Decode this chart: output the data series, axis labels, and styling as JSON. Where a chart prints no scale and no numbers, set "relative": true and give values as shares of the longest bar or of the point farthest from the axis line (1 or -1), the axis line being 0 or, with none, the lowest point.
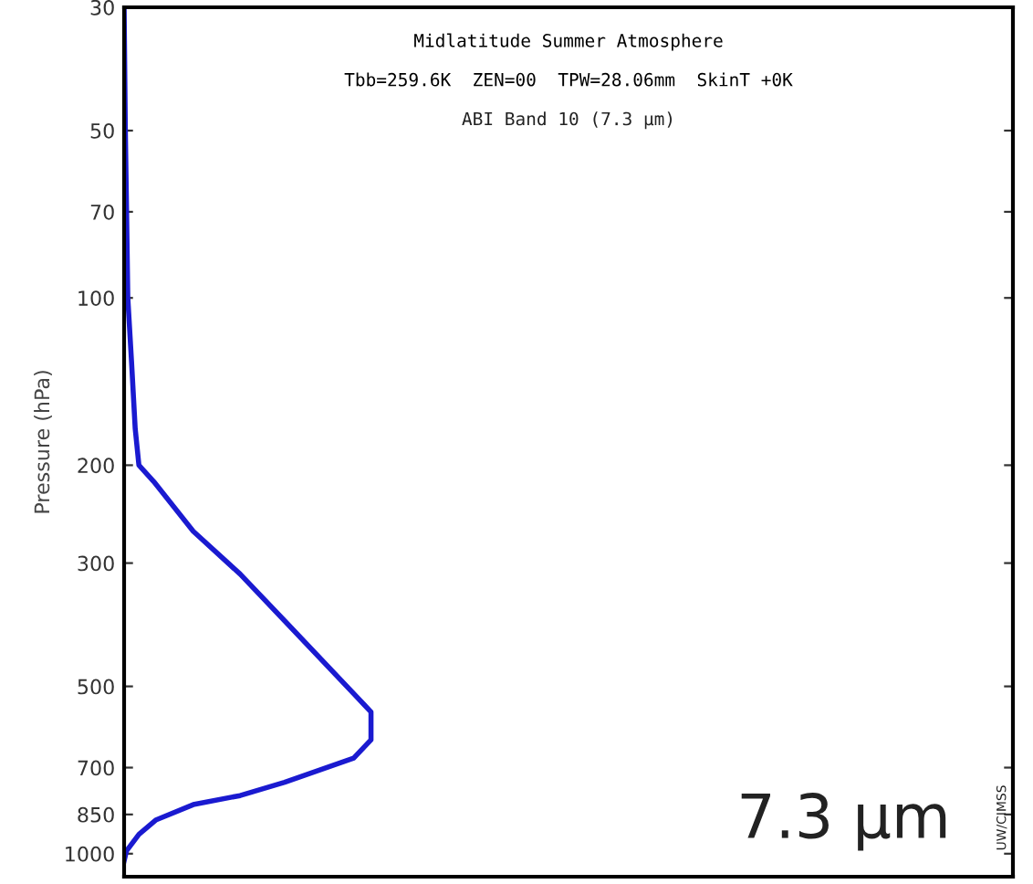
{
  "chart_data": {
    "type": "line",
    "orientation": "horizontal",
    "relative": true,
    "title": "Midlatitude Summer Atmosphere",
    "subtitle": "Tbb=259.6K  ZEN=00  TPW=28.06mm  SkinT +0K",
    "ylabel": "Pressure (hPa)",
    "annotations": [
      "ABI Band 10 (7.3 µm)",
      "7.3 µm",
      "UW/CIMSS"
    ],
    "x": [
      30,
      50,
      70,
      100,
      130,
      172,
      200,
      214,
      263,
      314,
      381,
      538,
      556,
      624,
      673,
      744,
      786,
      816,
      869,
      923,
      988,
      1030
    ],
    "series": [
      {
        "color": "#1a1ad0",
        "values": [
          0,
          0.005,
          0.01,
          0.015,
          0.03,
          0.045,
          0.06,
          0.12,
          0.28,
          0.47,
          0.65,
          0.97,
          1.0,
          1.0,
          0.93,
          0.65,
          0.47,
          0.28,
          0.13,
          0.06,
          0.01,
          0.0
        ]
      }
    ],
    "log": "y",
    "ylim": [
      1100,
      30
    ],
    "yticks": [
      30,
      50,
      70,
      100,
      200,
      300,
      500,
      700,
      850,
      1000
    ],
    "tick_labels": "y",
    "grid": false,
    "legend": false,
    "marker": "none",
    "line_style": "solid"
  }
}
